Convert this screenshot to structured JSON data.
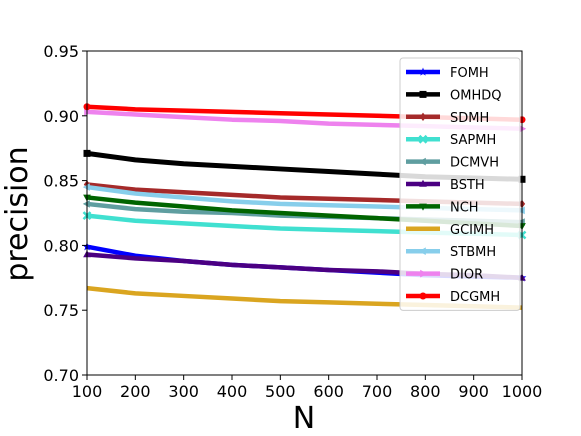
{
  "chart_data": {
    "type": "line",
    "xlabel": "N",
    "ylabel": "precision",
    "xlim": [
      100,
      1000
    ],
    "ylim": [
      0.7,
      0.95
    ],
    "x_ticks": [
      100,
      200,
      300,
      400,
      500,
      600,
      700,
      800,
      900,
      1000
    ],
    "y_ticks": [
      0.7,
      0.75,
      0.8,
      0.85,
      0.9,
      0.95
    ],
    "y_tick_labels": [
      "0.70",
      "0.75",
      "0.80",
      "0.85",
      "0.90",
      "0.95"
    ],
    "grid": false,
    "legend_position": "upper-right",
    "x": [
      100,
      200,
      300,
      400,
      500,
      600,
      700,
      800,
      900,
      1000
    ],
    "series": [
      {
        "name": "FOMH",
        "color": "#0000ff",
        "marker": "star",
        "values": [
          0.799,
          0.792,
          0.788,
          0.785,
          0.783,
          0.781,
          0.779,
          0.777,
          0.776,
          0.775
        ]
      },
      {
        "name": "OMHDQ",
        "color": "#000000",
        "marker": "square",
        "values": [
          0.871,
          0.866,
          0.863,
          0.861,
          0.859,
          0.857,
          0.855,
          0.853,
          0.852,
          0.851
        ]
      },
      {
        "name": "SDMH",
        "color": "#a52a2a",
        "marker": "diamond",
        "values": [
          0.847,
          0.843,
          0.841,
          0.839,
          0.837,
          0.836,
          0.835,
          0.834,
          0.833,
          0.832
        ]
      },
      {
        "name": "SAPMH",
        "color": "#40e0d0",
        "marker": "x",
        "values": [
          0.823,
          0.819,
          0.817,
          0.815,
          0.813,
          0.812,
          0.811,
          0.81,
          0.809,
          0.808
        ]
      },
      {
        "name": "DCMVH",
        "color": "#5f9ea0",
        "marker": "tri_left",
        "values": [
          0.832,
          0.828,
          0.826,
          0.825,
          0.823,
          0.822,
          0.821,
          0.82,
          0.819,
          0.818
        ]
      },
      {
        "name": "BSTH",
        "color": "#4b0082",
        "marker": "triangle_up",
        "values": [
          0.793,
          0.79,
          0.788,
          0.785,
          0.783,
          0.781,
          0.78,
          0.778,
          0.777,
          0.775
        ]
      },
      {
        "name": "NCH",
        "color": "#006400",
        "marker": "triangle_down",
        "values": [
          0.837,
          0.833,
          0.83,
          0.827,
          0.825,
          0.823,
          0.821,
          0.819,
          0.817,
          0.815
        ]
      },
      {
        "name": "GCIMH",
        "color": "#daa520",
        "marker": "none",
        "values": [
          0.767,
          0.763,
          0.761,
          0.759,
          0.757,
          0.756,
          0.755,
          0.754,
          0.753,
          0.752
        ]
      },
      {
        "name": "STBMH",
        "color": "#87ceeb",
        "marker": "triangle_left",
        "values": [
          0.845,
          0.84,
          0.837,
          0.834,
          0.832,
          0.831,
          0.83,
          0.829,
          0.828,
          0.827
        ]
      },
      {
        "name": "DIOR",
        "color": "#ee82ee",
        "marker": "triangle_right",
        "values": [
          0.903,
          0.901,
          0.899,
          0.897,
          0.896,
          0.894,
          0.893,
          0.892,
          0.891,
          0.89
        ]
      },
      {
        "name": "DCGMH",
        "color": "#ff0000",
        "marker": "circle",
        "values": [
          0.907,
          0.905,
          0.904,
          0.903,
          0.902,
          0.901,
          0.9,
          0.899,
          0.898,
          0.897
        ]
      }
    ]
  }
}
